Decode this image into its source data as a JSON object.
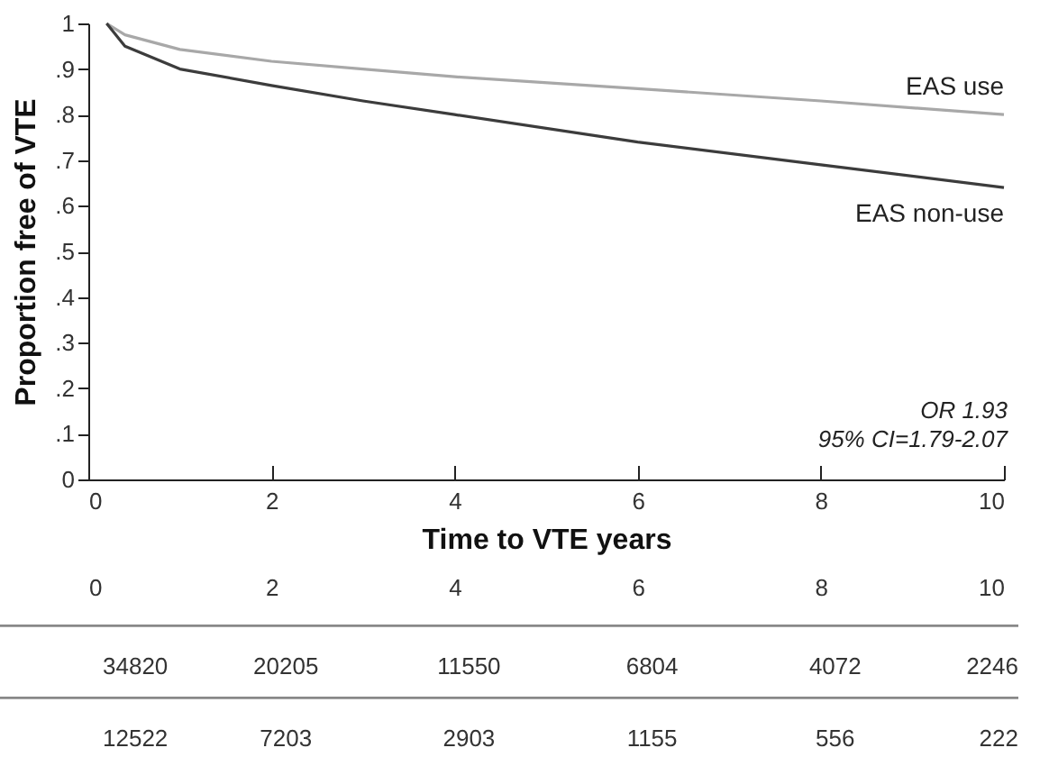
{
  "chart_data": [
    {
      "type": "line",
      "ylabel": "Proportion free of VTE",
      "xlabel": "Time to VTE years",
      "x": [
        0.2,
        0.4,
        1,
        2,
        3,
        4,
        6,
        8,
        10
      ],
      "series": [
        {
          "name": "EAS use",
          "color": "#a8a8a8",
          "values": [
            1.0,
            0.975,
            0.943,
            0.917,
            0.9,
            0.883,
            0.857,
            0.83,
            0.8
          ]
        },
        {
          "name": "EAS non-use",
          "color": "#3c3c3c",
          "values": [
            1.0,
            0.95,
            0.9,
            0.864,
            0.83,
            0.8,
            0.74,
            0.69,
            0.64
          ]
        }
      ],
      "xlim": [
        0,
        10
      ],
      "xticks": [
        0,
        2,
        4,
        6,
        8,
        10
      ],
      "ylim": [
        0,
        1
      ],
      "yticks": [
        {
          "value": 0,
          "label": "0"
        },
        {
          "value": 0.1,
          "label": ".1"
        },
        {
          "value": 0.2,
          "label": ".2"
        },
        {
          "value": 0.3,
          "label": ".3"
        },
        {
          "value": 0.4,
          "label": ".4"
        },
        {
          "value": 0.5,
          "label": ".5"
        },
        {
          "value": 0.6,
          "label": ".6"
        },
        {
          "value": 0.7,
          "label": ".7"
        },
        {
          "value": 0.8,
          "label": ".8"
        },
        {
          "value": 0.9,
          "label": ".9"
        },
        {
          "value": 1,
          "label": "1"
        }
      ],
      "x2lim": [
        0,
        10
      ],
      "x2ticks": [
        0,
        2,
        4,
        6,
        8,
        10
      ],
      "grid": false,
      "legend": false,
      "marker": "none",
      "line_style": "solid",
      "annotations": [
        "OR 1.93",
        "95% CI=1.79-2.07"
      ]
    },
    {
      "type": "other",
      "annotations": [
        "34820",
        "20205",
        "11550",
        "6804",
        "4072",
        "2246",
        "12522",
        "7203",
        "2903",
        "1155",
        "556",
        "222"
      ]
    }
  ]
}
